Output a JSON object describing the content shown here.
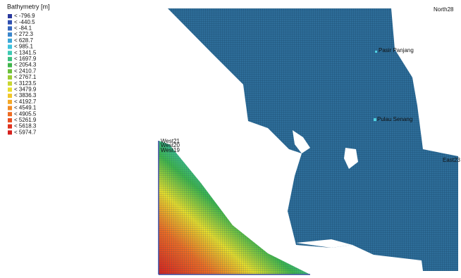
{
  "legend": {
    "title": "Bathymetry [m]",
    "items": [
      {
        "label": "< -796.9",
        "color": "#2b3a9e"
      },
      {
        "label": "< -440.5",
        "color": "#2f4fb0"
      },
      {
        "label": "< -84.1",
        "color": "#3566be"
      },
      {
        "label": "< 272.3",
        "color": "#3a86cc"
      },
      {
        "label": "< 628.7",
        "color": "#3aa6d8"
      },
      {
        "label": "< 985.1",
        "color": "#3cc2dc"
      },
      {
        "label": "< 1341.5",
        "color": "#3fc9b4"
      },
      {
        "label": "< 1697.9",
        "color": "#3cbf7e"
      },
      {
        "label": "< 2054.3",
        "color": "#3fb54a"
      },
      {
        "label": "< 2410.7",
        "color": "#6cc03a"
      },
      {
        "label": "< 2767.1",
        "color": "#9ccc34"
      },
      {
        "label": "< 3123.5",
        "color": "#c8d630"
      },
      {
        "label": "< 3479.9",
        "color": "#e8de2a"
      },
      {
        "label": "< 3836.3",
        "color": "#f2c628"
      },
      {
        "label": "< 4192.7",
        "color": "#f4a826"
      },
      {
        "label": "< 4549.1",
        "color": "#f28a24"
      },
      {
        "label": "< 4905.5",
        "color": "#ee6c22"
      },
      {
        "label": "< 5261.9",
        "color": "#e84e20"
      },
      {
        "label": "< 5618.3",
        "color": "#e0321e"
      },
      {
        "label": "< 5974.7",
        "color": "#d6201c"
      }
    ]
  },
  "places": [
    "Pasir Panjang",
    "Pulau Senang"
  ],
  "boundary": [
    "North28",
    "West21",
    "West20",
    "West19",
    "East23"
  ]
}
